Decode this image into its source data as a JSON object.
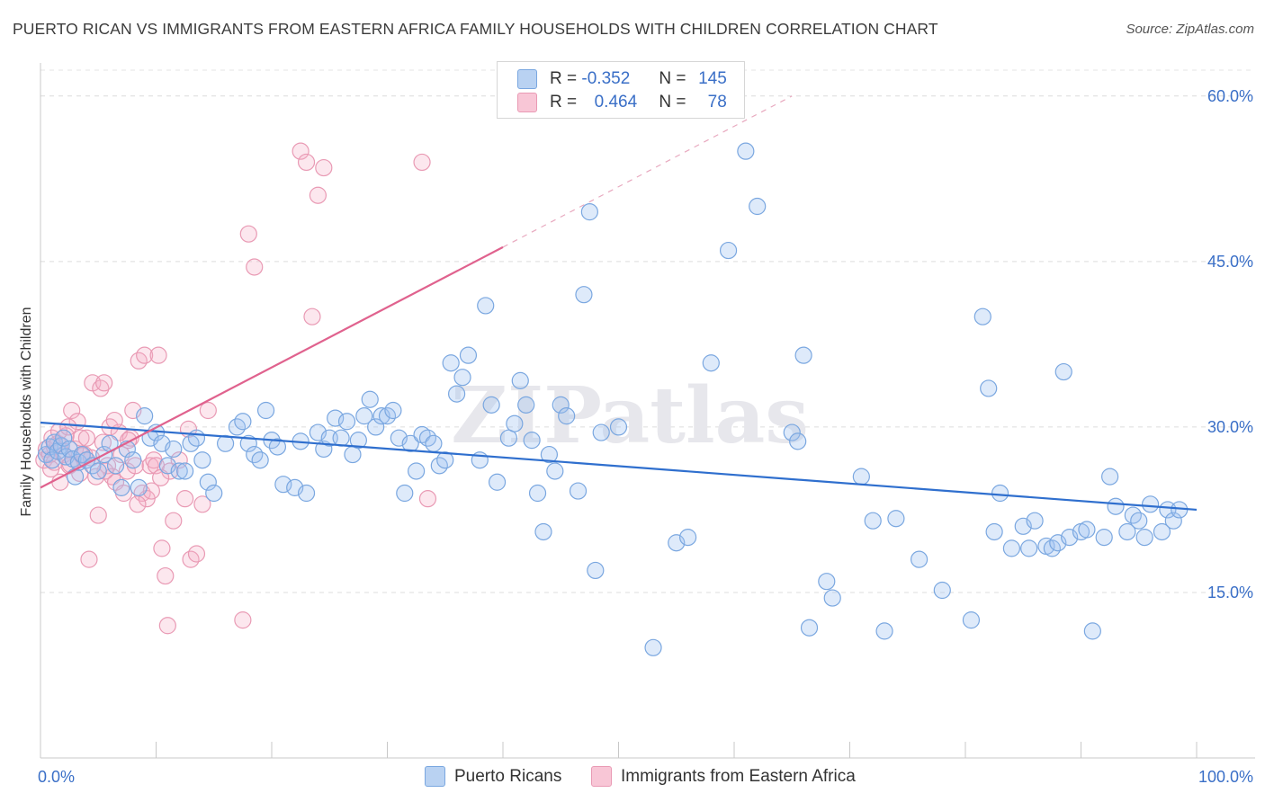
{
  "title": "PUERTO RICAN VS IMMIGRANTS FROM EASTERN AFRICA FAMILY HOUSEHOLDS WITH CHILDREN CORRELATION CHART",
  "source": "Source: ZipAtlas.com",
  "watermark": "ZIPatlas",
  "legend": {
    "r1_label": "R =",
    "r1_value": "-0.352",
    "n1_label": "N =",
    "n1_value": "145",
    "r2_label": "R =",
    "r2_value": "0.464",
    "n2_label": "N =",
    "n2_value": "78"
  },
  "bottom_legend": {
    "blue_label": "Puerto Ricans",
    "pink_label": "Immigrants from Eastern Africa"
  },
  "chart_data": {
    "type": "scatter",
    "title": "PUERTO RICAN VS IMMIGRANTS FROM EASTERN AFRICA FAMILY HOUSEHOLDS WITH CHILDREN CORRELATION CHART",
    "xlabel": "",
    "ylabel": "Family Households with Children",
    "xlim": [
      0,
      100
    ],
    "ylim": [
      0,
      63
    ],
    "x_ticks": [
      "0.0%",
      "100.0%"
    ],
    "y_ticks": [
      "15.0%",
      "30.0%",
      "45.0%",
      "60.0%"
    ],
    "y_tick_values": [
      15,
      30,
      45,
      60
    ],
    "grid": true,
    "colors": {
      "blue": "#7aa7e0",
      "blue_line": "#2f6fce",
      "pink": "#e99ab4",
      "pink_line": "#e0628e",
      "tick_text": "#3a6fc7"
    },
    "series": [
      {
        "name": "Puerto Ricans",
        "color": "blue",
        "trend": {
          "x": [
            0,
            100
          ],
          "y": [
            30.4,
            22.5
          ]
        },
        "points": [
          [
            0.5,
            27.5
          ],
          [
            0.8,
            28.2
          ],
          [
            1.0,
            27.0
          ],
          [
            1.2,
            28.6
          ],
          [
            1.5,
            27.8
          ],
          [
            1.8,
            28.3
          ],
          [
            2.0,
            29.0
          ],
          [
            2.2,
            27.3
          ],
          [
            2.5,
            28.0
          ],
          [
            2.8,
            27.1
          ],
          [
            3.0,
            25.5
          ],
          [
            3.3,
            26.8
          ],
          [
            3.6,
            27.5
          ],
          [
            4.0,
            27.0
          ],
          [
            4.5,
            26.5
          ],
          [
            5.0,
            26.0
          ],
          [
            5.5,
            27.5
          ],
          [
            6.0,
            28.5
          ],
          [
            6.5,
            26.5
          ],
          [
            7.0,
            24.5
          ],
          [
            7.5,
            28.0
          ],
          [
            8.0,
            27.0
          ],
          [
            8.5,
            24.5
          ],
          [
            9.0,
            31.0
          ],
          [
            9.5,
            29.0
          ],
          [
            10.0,
            29.5
          ],
          [
            10.5,
            28.5
          ],
          [
            11.0,
            26.5
          ],
          [
            11.5,
            28.0
          ],
          [
            12.0,
            26.0
          ],
          [
            12.5,
            26.0
          ],
          [
            13.0,
            28.5
          ],
          [
            13.5,
            29.0
          ],
          [
            14.0,
            27.0
          ],
          [
            14.5,
            25.0
          ],
          [
            15.0,
            24.0
          ],
          [
            16.0,
            28.5
          ],
          [
            17.0,
            30.0
          ],
          [
            17.5,
            30.5
          ],
          [
            18.0,
            28.5
          ],
          [
            18.5,
            27.5
          ],
          [
            19.0,
            27.0
          ],
          [
            19.5,
            31.5
          ],
          [
            20.0,
            28.8
          ],
          [
            20.5,
            28.2
          ],
          [
            21.0,
            24.8
          ],
          [
            22.0,
            24.5
          ],
          [
            22.5,
            28.7
          ],
          [
            23.0,
            24.0
          ],
          [
            24.0,
            29.5
          ],
          [
            24.5,
            28.0
          ],
          [
            25.0,
            29.0
          ],
          [
            25.5,
            30.8
          ],
          [
            26.0,
            29.0
          ],
          [
            26.5,
            30.5
          ],
          [
            27.0,
            27.5
          ],
          [
            27.5,
            28.8
          ],
          [
            28.0,
            31.0
          ],
          [
            28.5,
            32.5
          ],
          [
            29.0,
            30.0
          ],
          [
            29.5,
            31.0
          ],
          [
            30.0,
            31.0
          ],
          [
            30.5,
            31.5
          ],
          [
            31.0,
            29.0
          ],
          [
            31.5,
            24.0
          ],
          [
            32.0,
            28.5
          ],
          [
            32.5,
            26.0
          ],
          [
            33.0,
            29.3
          ],
          [
            33.5,
            29.0
          ],
          [
            34.0,
            28.5
          ],
          [
            34.5,
            26.5
          ],
          [
            35.0,
            27.0
          ],
          [
            35.5,
            35.8
          ],
          [
            36.0,
            33.0
          ],
          [
            36.5,
            34.5
          ],
          [
            37.0,
            36.5
          ],
          [
            38.0,
            27.0
          ],
          [
            38.5,
            41.0
          ],
          [
            39.0,
            32.0
          ],
          [
            39.5,
            25.0
          ],
          [
            40.5,
            29.0
          ],
          [
            41.0,
            30.3
          ],
          [
            41.5,
            34.2
          ],
          [
            42.0,
            32.0
          ],
          [
            42.5,
            28.8
          ],
          [
            43.0,
            24.0
          ],
          [
            43.5,
            20.5
          ],
          [
            44.0,
            27.5
          ],
          [
            44.5,
            26.0
          ],
          [
            45.0,
            32.0
          ],
          [
            45.5,
            31.0
          ],
          [
            46.5,
            24.2
          ],
          [
            47.0,
            42.0
          ],
          [
            47.5,
            49.5
          ],
          [
            48.0,
            17.0
          ],
          [
            48.5,
            29.5
          ],
          [
            50.0,
            30.0
          ],
          [
            53.0,
            10.0
          ],
          [
            55.0,
            19.5
          ],
          [
            56.0,
            20.0
          ],
          [
            58.0,
            35.8
          ],
          [
            59.5,
            46.0
          ],
          [
            61.0,
            55.0
          ],
          [
            62.0,
            50.0
          ],
          [
            65.0,
            29.5
          ],
          [
            65.5,
            28.7
          ],
          [
            66.0,
            36.5
          ],
          [
            66.5,
            11.8
          ],
          [
            68.0,
            16.0
          ],
          [
            68.5,
            14.5
          ],
          [
            71.0,
            25.5
          ],
          [
            72.0,
            21.5
          ],
          [
            73.0,
            11.5
          ],
          [
            74.0,
            21.7
          ],
          [
            76.0,
            18.0
          ],
          [
            78.0,
            15.2
          ],
          [
            80.5,
            12.5
          ],
          [
            81.5,
            40.0
          ],
          [
            82.0,
            33.5
          ],
          [
            82.5,
            20.5
          ],
          [
            83.0,
            24.0
          ],
          [
            84.0,
            19.0
          ],
          [
            85.0,
            21.0
          ],
          [
            85.5,
            19.0
          ],
          [
            86.0,
            21.5
          ],
          [
            87.0,
            19.2
          ],
          [
            87.5,
            19.0
          ],
          [
            88.0,
            19.5
          ],
          [
            88.5,
            35.0
          ],
          [
            89.0,
            20.0
          ],
          [
            90.0,
            20.5
          ],
          [
            90.5,
            20.7
          ],
          [
            91.0,
            11.5
          ],
          [
            92.0,
            20.0
          ],
          [
            92.5,
            25.5
          ],
          [
            93.0,
            22.8
          ],
          [
            94.0,
            20.5
          ],
          [
            94.5,
            22.0
          ],
          [
            95.0,
            21.5
          ],
          [
            95.5,
            20.0
          ],
          [
            96.0,
            23.0
          ],
          [
            97.0,
            20.5
          ],
          [
            97.5,
            22.5
          ],
          [
            98.0,
            21.5
          ],
          [
            98.5,
            22.5
          ]
        ]
      },
      {
        "name": "Immigrants from Eastern Africa",
        "color": "pink",
        "trend": {
          "x": [
            0,
            40
          ],
          "y": [
            24.5,
            46.3
          ],
          "dashed_to": {
            "x": 65,
            "y": 60
          }
        },
        "points": [
          [
            0.3,
            27.0
          ],
          [
            0.5,
            28.0
          ],
          [
            0.8,
            27.5
          ],
          [
            1.0,
            29.0
          ],
          [
            1.2,
            26.8
          ],
          [
            1.5,
            28.5
          ],
          [
            1.7,
            25.0
          ],
          [
            2.0,
            27.5
          ],
          [
            2.2,
            29.2
          ],
          [
            2.5,
            26.5
          ],
          [
            2.7,
            31.5
          ],
          [
            3.0,
            28.0
          ],
          [
            3.2,
            30.5
          ],
          [
            3.5,
            29.0
          ],
          [
            3.8,
            27.5
          ],
          [
            4.0,
            29.0
          ],
          [
            4.2,
            18.0
          ],
          [
            4.5,
            34.0
          ],
          [
            4.8,
            25.5
          ],
          [
            5.0,
            22.0
          ],
          [
            5.2,
            33.5
          ],
          [
            5.5,
            34.0
          ],
          [
            5.8,
            26.5
          ],
          [
            6.0,
            30.0
          ],
          [
            6.2,
            25.5
          ],
          [
            6.5,
            25.0
          ],
          [
            6.8,
            29.5
          ],
          [
            7.0,
            27.5
          ],
          [
            7.2,
            24.0
          ],
          [
            7.5,
            26.0
          ],
          [
            7.8,
            29.0
          ],
          [
            8.0,
            31.5
          ],
          [
            8.2,
            26.5
          ],
          [
            8.5,
            36.0
          ],
          [
            8.8,
            24.0
          ],
          [
            9.0,
            36.5
          ],
          [
            9.2,
            23.5
          ],
          [
            9.5,
            26.5
          ],
          [
            9.8,
            27.0
          ],
          [
            10.0,
            26.5
          ],
          [
            10.2,
            36.5
          ],
          [
            10.5,
            19.0
          ],
          [
            10.8,
            16.5
          ],
          [
            11.0,
            12.0
          ],
          [
            11.5,
            21.5
          ],
          [
            12.0,
            27.0
          ],
          [
            12.5,
            23.5
          ],
          [
            13.0,
            18.0
          ],
          [
            13.5,
            18.5
          ],
          [
            14.0,
            23.0
          ],
          [
            14.5,
            31.5
          ],
          [
            17.5,
            12.5
          ],
          [
            18.0,
            47.5
          ],
          [
            18.5,
            44.5
          ],
          [
            22.5,
            55.0
          ],
          [
            23.0,
            54.0
          ],
          [
            24.0,
            51.0
          ],
          [
            24.5,
            53.5
          ],
          [
            23.5,
            40.0
          ],
          [
            33.0,
            54.0
          ],
          [
            33.5,
            23.5
          ],
          [
            1.2,
            28.2
          ],
          [
            2.6,
            26.6
          ],
          [
            3.6,
            27.4
          ],
          [
            5.6,
            26.0
          ],
          [
            7.6,
            28.8
          ],
          [
            9.6,
            24.2
          ],
          [
            11.2,
            26.0
          ],
          [
            12.8,
            29.8
          ],
          [
            1.6,
            29.6
          ],
          [
            4.4,
            27.2
          ],
          [
            6.4,
            30.6
          ],
          [
            8.4,
            23.0
          ],
          [
            10.4,
            25.4
          ],
          [
            0.9,
            26.2
          ],
          [
            2.4,
            30.0
          ],
          [
            3.4,
            25.8
          ],
          [
            5.4,
            28.6
          ]
        ]
      }
    ]
  }
}
